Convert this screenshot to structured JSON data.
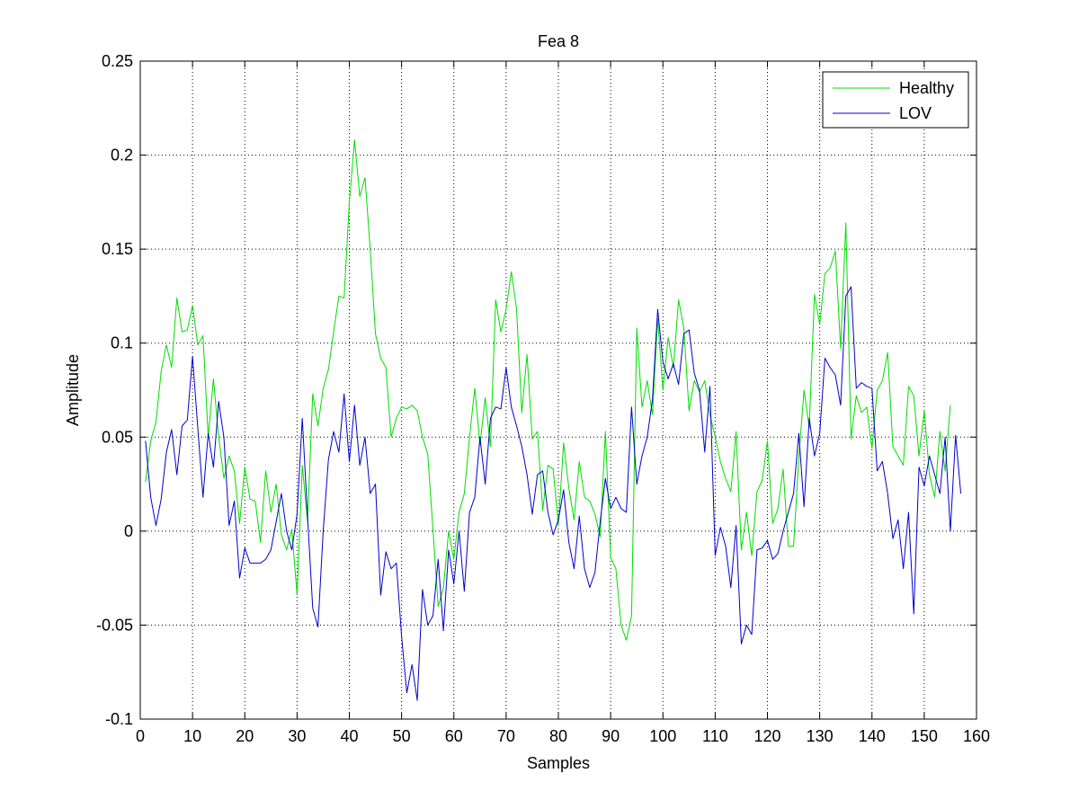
{
  "chart_data": {
    "type": "line",
    "title": "Fea 8",
    "xlabel": "Samples",
    "ylabel": "Amplitude",
    "xlim": [
      0,
      160
    ],
    "ylim": [
      -0.1,
      0.25
    ],
    "xticks": [
      0,
      10,
      20,
      30,
      40,
      50,
      60,
      70,
      80,
      90,
      100,
      110,
      120,
      130,
      140,
      150,
      160
    ],
    "yticks": [
      -0.1,
      -0.05,
      0,
      0.05,
      0.1,
      0.15,
      0.2,
      0.25
    ],
    "xtick_labels": [
      "0",
      "10",
      "20",
      "30",
      "40",
      "50",
      "60",
      "70",
      "80",
      "90",
      "100",
      "110",
      "120",
      "130",
      "140",
      "150",
      "160"
    ],
    "ytick_labels": [
      "-0.1",
      "-0.05",
      "0",
      "0.05",
      "0.1",
      "0.15",
      "0.2",
      "0.25"
    ],
    "grid": true,
    "legend_position": "top-right",
    "x_start": 1,
    "series": [
      {
        "name": "Healthy",
        "color": "#00dd00",
        "values": [
          0.026,
          0.048,
          0.058,
          0.085,
          0.099,
          0.087,
          0.124,
          0.106,
          0.107,
          0.12,
          0.099,
          0.104,
          0.05,
          0.081,
          0.05,
          0.028,
          0.04,
          0.032,
          0.004,
          0.034,
          0.017,
          0.016,
          -0.006,
          0.032,
          0.01,
          0.025,
          -0.002,
          -0.01,
          0.001,
          -0.034,
          0.035,
          0.005,
          0.073,
          0.056,
          0.076,
          0.086,
          0.106,
          0.125,
          0.124,
          0.175,
          0.208,
          0.178,
          0.188,
          0.15,
          0.105,
          0.092,
          0.087,
          0.05,
          0.06,
          0.066,
          0.065,
          0.067,
          0.064,
          0.05,
          0.041,
          0.001,
          -0.04,
          -0.03,
          0.0,
          -0.015,
          0.01,
          0.02,
          0.05,
          0.076,
          0.046,
          0.071,
          0.045,
          0.123,
          0.106,
          0.118,
          0.138,
          0.118,
          0.063,
          0.094,
          0.049,
          0.053,
          0.011,
          0.035,
          0.033,
          0.003,
          0.047,
          0.023,
          0.006,
          0.037,
          0.018,
          0.016,
          0.009,
          -0.003,
          0.053,
          -0.014,
          -0.02,
          -0.05,
          -0.058,
          -0.045,
          0.108,
          0.066,
          0.08,
          0.062,
          0.113,
          0.075,
          0.103,
          0.087,
          0.123,
          0.108,
          0.064,
          0.08,
          0.074,
          0.08,
          0.062,
          0.05,
          0.037,
          0.028,
          0.021,
          0.053,
          -0.01,
          0.01,
          -0.013,
          0.021,
          0.027,
          0.048,
          0.004,
          0.012,
          0.033,
          -0.008,
          -0.008,
          0.039,
          0.075,
          0.055,
          0.126,
          0.11,
          0.137,
          0.14,
          0.149,
          0.097,
          0.164,
          0.049,
          0.072,
          0.063,
          0.066,
          0.044,
          0.075,
          0.08,
          0.095,
          0.045,
          0.04,
          0.035,
          0.077,
          0.072,
          0.04,
          0.064,
          0.03,
          0.018,
          0.053,
          0.032,
          0.067
        ]
      },
      {
        "name": "LOV",
        "color": "#0000cc",
        "values": [
          0.048,
          0.018,
          0.003,
          0.017,
          0.042,
          0.054,
          0.03,
          0.056,
          0.059,
          0.093,
          0.055,
          0.018,
          0.052,
          0.034,
          0.069,
          0.05,
          0.003,
          0.016,
          -0.025,
          -0.009,
          -0.017,
          -0.017,
          -0.017,
          -0.015,
          -0.01,
          0.005,
          0.02,
          0.0,
          -0.01,
          0.009,
          0.06,
          0.008,
          -0.041,
          -0.051,
          0.0,
          0.038,
          0.053,
          0.042,
          0.073,
          0.037,
          0.067,
          0.035,
          0.05,
          0.02,
          0.025,
          -0.034,
          -0.011,
          -0.02,
          -0.017,
          -0.056,
          -0.086,
          -0.071,
          -0.09,
          -0.031,
          -0.05,
          -0.045,
          -0.015,
          -0.053,
          -0.01,
          -0.028,
          -0.0,
          -0.032,
          0.01,
          0.018,
          0.05,
          0.025,
          0.06,
          0.066,
          0.065,
          0.087,
          0.066,
          0.056,
          0.045,
          0.03,
          0.009,
          0.03,
          0.032,
          0.01,
          -0.002,
          0.006,
          0.022,
          -0.006,
          -0.02,
          0.008,
          -0.02,
          -0.03,
          -0.022,
          0.005,
          0.028,
          0.012,
          0.018,
          0.012,
          0.01,
          0.066,
          0.025,
          0.04,
          0.05,
          0.07,
          0.118,
          0.09,
          0.081,
          0.089,
          0.078,
          0.105,
          0.107,
          0.084,
          0.075,
          0.042,
          0.077,
          -0.013,
          0.002,
          -0.008,
          -0.03,
          0.003,
          -0.06,
          -0.05,
          -0.055,
          -0.01,
          -0.009,
          -0.005,
          -0.015,
          -0.012,
          0.0,
          0.01,
          0.02,
          0.052,
          0.013,
          0.06,
          0.04,
          0.052,
          0.092,
          0.087,
          0.083,
          0.067,
          0.125,
          0.13,
          0.076,
          0.079,
          0.077,
          0.076,
          0.032,
          0.037,
          0.02,
          -0.004,
          0.006,
          -0.02,
          0.01,
          -0.044,
          0.034,
          0.024,
          0.04,
          0.03,
          0.02,
          0.05,
          0.0,
          0.051,
          0.02
        ]
      }
    ]
  }
}
